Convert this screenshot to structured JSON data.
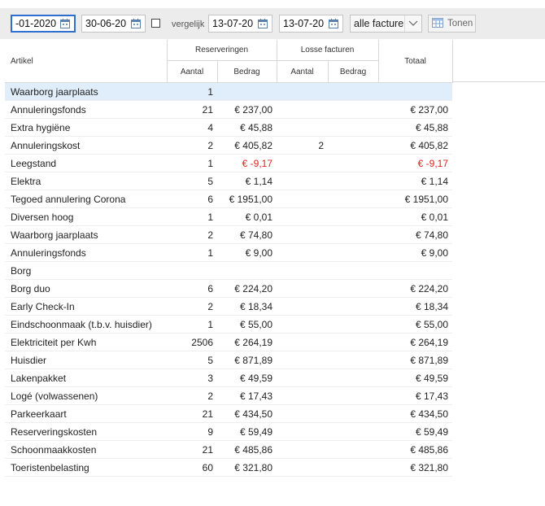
{
  "filters": {
    "date_from": "-01-2020",
    "date_to": "30-06-20",
    "compare_label": "vergelijk",
    "compare_from": "13-07-20",
    "compare_to": "13-07-20",
    "invoice_type": "alle facture",
    "show_button": "Tonen"
  },
  "table": {
    "headers": {
      "artikel": "Artikel",
      "reserveringen": "Reserveringen",
      "losse_facturen": "Losse facturen",
      "totaal": "Totaal",
      "aantal": "Aantal",
      "bedrag": "Bedrag",
      "aantal2": "Aantal",
      "bedrag2": "Bedrag"
    },
    "rows": [
      {
        "artikel": "Waarborg jaarplaats",
        "res_aantal": "1",
        "res_bedrag": "",
        "losse_aantal": "",
        "losse_bedrag": "",
        "totaal": "",
        "highlight": true
      },
      {
        "artikel": "Annuleringsfonds",
        "res_aantal": "21",
        "res_bedrag": "€ 237,00",
        "losse_aantal": "",
        "losse_bedrag": "",
        "totaal": "€ 237,00"
      },
      {
        "artikel": "Extra hygiëne",
        "res_aantal": "4",
        "res_bedrag": "€ 45,88",
        "losse_aantal": "",
        "losse_bedrag": "",
        "totaal": "€ 45,88"
      },
      {
        "artikel": "Annuleringskost",
        "res_aantal": "2",
        "res_bedrag": "€ 405,82",
        "losse_aantal": "2",
        "losse_bedrag": "",
        "totaal": "€ 405,82"
      },
      {
        "artikel": "Leegstand",
        "res_aantal": "1",
        "res_bedrag": "€ -9,17",
        "losse_aantal": "",
        "losse_bedrag": "",
        "totaal": "€ -9,17",
        "negative": true
      },
      {
        "artikel": "Elektra",
        "res_aantal": "5",
        "res_bedrag": "€ 1,14",
        "losse_aantal": "",
        "losse_bedrag": "",
        "totaal": "€ 1,14"
      },
      {
        "artikel": "Tegoed annulering Corona",
        "res_aantal": "6",
        "res_bedrag": "€ 1951,00",
        "losse_aantal": "",
        "losse_bedrag": "",
        "totaal": "€ 1951,00"
      },
      {
        "artikel": "Diversen hoog",
        "res_aantal": "1",
        "res_bedrag": "€ 0,01",
        "losse_aantal": "",
        "losse_bedrag": "",
        "totaal": "€ 0,01"
      },
      {
        "artikel": "Waarborg jaarplaats",
        "res_aantal": "2",
        "res_bedrag": "€ 74,80",
        "losse_aantal": "",
        "losse_bedrag": "",
        "totaal": "€ 74,80"
      },
      {
        "artikel": "Annuleringsfonds",
        "res_aantal": "1",
        "res_bedrag": "€ 9,00",
        "losse_aantal": "",
        "losse_bedrag": "",
        "totaal": "€ 9,00"
      },
      {
        "artikel": "Borg",
        "res_aantal": "",
        "res_bedrag": "",
        "losse_aantal": "",
        "losse_bedrag": "",
        "totaal": ""
      },
      {
        "artikel": "Borg duo",
        "res_aantal": "6",
        "res_bedrag": "€ 224,20",
        "losse_aantal": "",
        "losse_bedrag": "",
        "totaal": "€ 224,20"
      },
      {
        "artikel": "Early Check-In",
        "res_aantal": "2",
        "res_bedrag": "€ 18,34",
        "losse_aantal": "",
        "losse_bedrag": "",
        "totaal": "€ 18,34"
      },
      {
        "artikel": "Eindschoonmaak (t.b.v. huisdier)",
        "res_aantal": "1",
        "res_bedrag": "€ 55,00",
        "losse_aantal": "",
        "losse_bedrag": "",
        "totaal": "€ 55,00"
      },
      {
        "artikel": "Elektriciteit per Kwh",
        "res_aantal": "2506",
        "res_bedrag": "€ 264,19",
        "losse_aantal": "",
        "losse_bedrag": "",
        "totaal": "€ 264,19"
      },
      {
        "artikel": "Huisdier",
        "res_aantal": "5",
        "res_bedrag": "€ 871,89",
        "losse_aantal": "",
        "losse_bedrag": "",
        "totaal": "€ 871,89"
      },
      {
        "artikel": "Lakenpakket",
        "res_aantal": "3",
        "res_bedrag": "€ 49,59",
        "losse_aantal": "",
        "losse_bedrag": "",
        "totaal": "€ 49,59"
      },
      {
        "artikel": "Logé (volwassenen)",
        "res_aantal": "2",
        "res_bedrag": "€ 17,43",
        "losse_aantal": "",
        "losse_bedrag": "",
        "totaal": "€ 17,43"
      },
      {
        "artikel": "Parkeerkaart",
        "res_aantal": "21",
        "res_bedrag": "€ 434,50",
        "losse_aantal": "",
        "losse_bedrag": "",
        "totaal": "€ 434,50"
      },
      {
        "artikel": "Reserveringskosten",
        "res_aantal": "9",
        "res_bedrag": "€ 59,49",
        "losse_aantal": "",
        "losse_bedrag": "",
        "totaal": "€ 59,49"
      },
      {
        "artikel": "Schoonmaakkosten",
        "res_aantal": "21",
        "res_bedrag": "€ 485,86",
        "losse_aantal": "",
        "losse_bedrag": "",
        "totaal": "€ 485,86"
      },
      {
        "artikel": "Toeristenbelasting",
        "res_aantal": "60",
        "res_bedrag": "€ 321,80",
        "losse_aantal": "",
        "losse_bedrag": "",
        "totaal": "€ 321,80"
      }
    ]
  },
  "colors": {
    "negative": "#e02020",
    "highlight_row": "#dfeefa",
    "focus_border": "#2f6fd0"
  }
}
